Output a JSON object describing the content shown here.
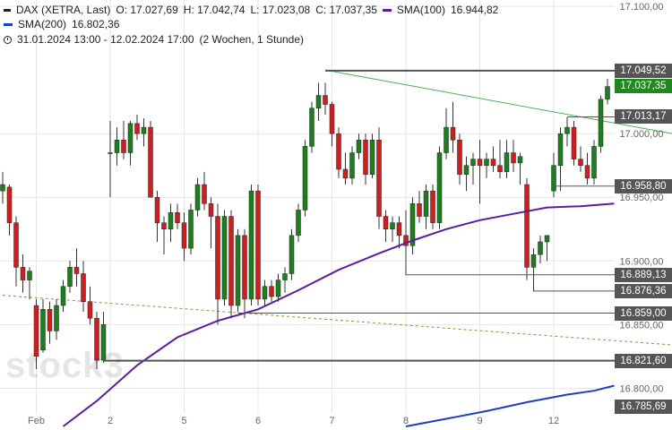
{
  "legend": {
    "instrument": "DAX (XETRA, Last)",
    "open": "O: 17.027,69",
    "high": "H: 17.042,74",
    "low": "L: 17.023,08",
    "close": "C: 17.037,35",
    "sma100_name": "SMA(100)",
    "sma100_value": "16.944,82",
    "sma200_name": "SMA(200)",
    "sma200_value": "16.802,36",
    "period": "31.01.2024 13:00 - 12.02.2024 17:00",
    "period_note": "(2 Wochen, 1 Stunde)"
  },
  "watermark": "stock3",
  "colors": {
    "bull": "#1e7d1e",
    "bear": "#cc1f1f",
    "sma100": "#5a1d9e",
    "sma200": "#1d3fbf",
    "trend": "#4caf50",
    "dashed": "#9a8a3a",
    "level": "#555555",
    "tag_dark": "#555555",
    "tag_current": "#1e8a1e"
  },
  "chart_data": {
    "type": "candlestick",
    "y_range": [
      16770,
      17105
    ],
    "y_ticks": [
      {
        "value": 17100,
        "label": "17.100,00"
      },
      {
        "value": 17000,
        "label": "17.000,00"
      },
      {
        "value": 16950,
        "label": "16.950,00"
      },
      {
        "value": 16900,
        "label": "16.900,00"
      },
      {
        "value": 16850,
        "label": "16.850,00"
      },
      {
        "value": 16800,
        "label": "16.800,00"
      }
    ],
    "x_labels": [
      {
        "index": 5,
        "label": "Feb"
      },
      {
        "index": 16,
        "label": "2"
      },
      {
        "index": 27,
        "label": "5"
      },
      {
        "index": 38,
        "label": "6"
      },
      {
        "index": 49,
        "label": "7"
      },
      {
        "index": 60,
        "label": "8"
      },
      {
        "index": 71,
        "label": "9"
      },
      {
        "index": 82,
        "label": "12"
      }
    ],
    "x_count": 92,
    "candles": [
      {
        "o": 16955,
        "h": 16970,
        "l": 16945,
        "c": 16960
      },
      {
        "o": 16958,
        "h": 16960,
        "l": 16920,
        "c": 16930
      },
      {
        "o": 16930,
        "h": 16935,
        "l": 16880,
        "c": 16895
      },
      {
        "o": 16895,
        "h": 16905,
        "l": 16875,
        "c": 16885
      },
      {
        "o": 16885,
        "h": 16895,
        "l": 16870,
        "c": 16892
      },
      {
        "o": 16865,
        "h": 16870,
        "l": 16815,
        "c": 16825
      },
      {
        "o": 16830,
        "h": 16870,
        "l": 16828,
        "c": 16862
      },
      {
        "o": 16862,
        "h": 16868,
        "l": 16835,
        "c": 16845
      },
      {
        "o": 16845,
        "h": 16870,
        "l": 16838,
        "c": 16865
      },
      {
        "o": 16865,
        "h": 16885,
        "l": 16860,
        "c": 16880
      },
      {
        "o": 16880,
        "h": 16900,
        "l": 16875,
        "c": 16895
      },
      {
        "o": 16895,
        "h": 16910,
        "l": 16880,
        "c": 16890
      },
      {
        "o": 16890,
        "h": 16900,
        "l": 16860,
        "c": 16868
      },
      {
        "o": 16868,
        "h": 16880,
        "l": 16850,
        "c": 16855
      },
      {
        "o": 16855,
        "h": 16860,
        "l": 16815,
        "c": 16822
      },
      {
        "o": 16822,
        "h": 16860,
        "l": 16820,
        "c": 16850
      },
      {
        "o": 16985,
        "h": 17010,
        "l": 16950,
        "c": 16985
      },
      {
        "o": 16985,
        "h": 17005,
        "l": 16975,
        "c": 16995
      },
      {
        "o": 16995,
        "h": 17010,
        "l": 16980,
        "c": 16985
      },
      {
        "o": 16985,
        "h": 17010,
        "l": 16975,
        "c": 17008
      },
      {
        "o": 17008,
        "h": 17015,
        "l": 16995,
        "c": 17000
      },
      {
        "o": 17000,
        "h": 17012,
        "l": 16990,
        "c": 17005
      },
      {
        "o": 17005,
        "h": 17010,
        "l": 16950,
        "c": 16950
      },
      {
        "o": 16950,
        "h": 16955,
        "l": 16915,
        "c": 16930
      },
      {
        "o": 16930,
        "h": 16935,
        "l": 16905,
        "c": 16925
      },
      {
        "o": 16925,
        "h": 16945,
        "l": 16915,
        "c": 16938
      },
      {
        "o": 16938,
        "h": 16945,
        "l": 16925,
        "c": 16930
      },
      {
        "o": 16930,
        "h": 16938,
        "l": 16900,
        "c": 16910
      },
      {
        "o": 16910,
        "h": 16945,
        "l": 16905,
        "c": 16940
      },
      {
        "o": 16940,
        "h": 16965,
        "l": 16935,
        "c": 16960
      },
      {
        "o": 16960,
        "h": 16970,
        "l": 16940,
        "c": 16945
      },
      {
        "o": 16945,
        "h": 16950,
        "l": 16910,
        "c": 16935
      },
      {
        "o": 16935,
        "h": 16945,
        "l": 16850,
        "c": 16870
      },
      {
        "o": 16870,
        "h": 16940,
        "l": 16865,
        "c": 16935
      },
      {
        "o": 16935,
        "h": 16940,
        "l": 16855,
        "c": 16865
      },
      {
        "o": 16865,
        "h": 16925,
        "l": 16860,
        "c": 16920
      },
      {
        "o": 16920,
        "h": 16925,
        "l": 16855,
        "c": 16870
      },
      {
        "o": 16870,
        "h": 16960,
        "l": 16865,
        "c": 16955
      },
      {
        "o": 16955,
        "h": 16960,
        "l": 16865,
        "c": 16870
      },
      {
        "o": 16870,
        "h": 16885,
        "l": 16865,
        "c": 16880
      },
      {
        "o": 16880,
        "h": 16885,
        "l": 16868,
        "c": 16872
      },
      {
        "o": 16872,
        "h": 16890,
        "l": 16868,
        "c": 16885
      },
      {
        "o": 16885,
        "h": 16895,
        "l": 16875,
        "c": 16890
      },
      {
        "o": 16890,
        "h": 16925,
        "l": 16885,
        "c": 16920
      },
      {
        "o": 16920,
        "h": 16945,
        "l": 16915,
        "c": 16940
      },
      {
        "o": 16940,
        "h": 16995,
        "l": 16935,
        "c": 16990
      },
      {
        "o": 16990,
        "h": 17025,
        "l": 16985,
        "c": 17020
      },
      {
        "o": 17020,
        "h": 17040,
        "l": 17010,
        "c": 17030
      },
      {
        "o": 17030,
        "h": 17040,
        "l": 17015,
        "c": 17023
      },
      {
        "o": 17023,
        "h": 17025,
        "l": 16990,
        "c": 17000
      },
      {
        "o": 17000,
        "h": 17005,
        "l": 16965,
        "c": 16972
      },
      {
        "o": 16972,
        "h": 16985,
        "l": 16960,
        "c": 16965
      },
      {
        "o": 16965,
        "h": 16990,
        "l": 16960,
        "c": 16985
      },
      {
        "o": 16985,
        "h": 17000,
        "l": 16980,
        "c": 16995
      },
      {
        "o": 16995,
        "h": 17000,
        "l": 16960,
        "c": 16968
      },
      {
        "o": 16968,
        "h": 17000,
        "l": 16965,
        "c": 16995
      },
      {
        "o": 16995,
        "h": 17005,
        "l": 16925,
        "c": 16935
      },
      {
        "o": 16935,
        "h": 16940,
        "l": 16915,
        "c": 16925
      },
      {
        "o": 16925,
        "h": 16935,
        "l": 16915,
        "c": 16930
      },
      {
        "o": 16930,
        "h": 16935,
        "l": 16910,
        "c": 16920
      },
      {
        "o": 16920,
        "h": 16940,
        "l": 16889,
        "c": 16912
      },
      {
        "o": 16912,
        "h": 16950,
        "l": 16905,
        "c": 16945
      },
      {
        "o": 16945,
        "h": 16955,
        "l": 16930,
        "c": 16935
      },
      {
        "o": 16935,
        "h": 16960,
        "l": 16925,
        "c": 16955
      },
      {
        "o": 16955,
        "h": 16960,
        "l": 16925,
        "c": 16930
      },
      {
        "o": 16930,
        "h": 16990,
        "l": 16925,
        "c": 16985
      },
      {
        "o": 16985,
        "h": 17020,
        "l": 16980,
        "c": 17005
      },
      {
        "o": 17005,
        "h": 17025,
        "l": 16985,
        "c": 16995
      },
      {
        "o": 16995,
        "h": 17000,
        "l": 16960,
        "c": 16968
      },
      {
        "o": 16968,
        "h": 16982,
        "l": 16955,
        "c": 16975
      },
      {
        "o": 16975,
        "h": 16985,
        "l": 16960,
        "c": 16980
      },
      {
        "o": 16980,
        "h": 16995,
        "l": 16945,
        "c": 16975
      },
      {
        "o": 16975,
        "h": 16985,
        "l": 16965,
        "c": 16980
      },
      {
        "o": 16980,
        "h": 16990,
        "l": 16970,
        "c": 16975
      },
      {
        "o": 16975,
        "h": 16995,
        "l": 16965,
        "c": 16970
      },
      {
        "o": 16970,
        "h": 16995,
        "l": 16965,
        "c": 16985
      },
      {
        "o": 16985,
        "h": 16995,
        "l": 16970,
        "c": 16977
      },
      {
        "o": 16977,
        "h": 16985,
        "l": 16960,
        "c": 16982
      },
      {
        "o": 16960,
        "h": 16965,
        "l": 16885,
        "c": 16895
      },
      {
        "o": 16895,
        "h": 16910,
        "l": 16876,
        "c": 16905
      },
      {
        "o": 16905,
        "h": 16920,
        "l": 16898,
        "c": 16915
      },
      {
        "o": 16915,
        "h": 16920,
        "l": 16900,
        "c": 16920
      },
      {
        "o": 16955,
        "h": 16985,
        "l": 16950,
        "c": 16975
      },
      {
        "o": 16975,
        "h": 17005,
        "l": 16955,
        "c": 17000
      },
      {
        "o": 17000,
        "h": 17013,
        "l": 16990,
        "c": 17005
      },
      {
        "o": 17005,
        "h": 17010,
        "l": 16975,
        "c": 16980
      },
      {
        "o": 16980,
        "h": 16990,
        "l": 16970,
        "c": 16975
      },
      {
        "o": 16975,
        "h": 16985,
        "l": 16960,
        "c": 16965
      },
      {
        "o": 16965,
        "h": 16995,
        "l": 16960,
        "c": 16990
      },
      {
        "o": 16990,
        "h": 17030,
        "l": 16985,
        "c": 17027
      },
      {
        "o": 17027,
        "h": 17043,
        "l": 17023,
        "c": 17037
      }
    ],
    "sma100": [
      {
        "i": 9,
        "v": 16770
      },
      {
        "i": 14,
        "v": 16790
      },
      {
        "i": 20,
        "v": 16818
      },
      {
        "i": 26,
        "v": 16840
      },
      {
        "i": 32,
        "v": 16853
      },
      {
        "i": 38,
        "v": 16862
      },
      {
        "i": 44,
        "v": 16877
      },
      {
        "i": 50,
        "v": 16893
      },
      {
        "i": 56,
        "v": 16906
      },
      {
        "i": 61,
        "v": 16916
      },
      {
        "i": 66,
        "v": 16925
      },
      {
        "i": 71,
        "v": 16932
      },
      {
        "i": 76,
        "v": 16937
      },
      {
        "i": 81,
        "v": 16942
      },
      {
        "i": 86,
        "v": 16943
      },
      {
        "i": 91,
        "v": 16945
      }
    ],
    "sma200": [
      {
        "i": 60,
        "v": 16770
      },
      {
        "i": 66,
        "v": 16776
      },
      {
        "i": 72,
        "v": 16782
      },
      {
        "i": 78,
        "v": 16789
      },
      {
        "i": 84,
        "v": 16795
      },
      {
        "i": 88,
        "v": 16798
      },
      {
        "i": 91,
        "v": 16802
      }
    ],
    "trend_line": {
      "from": {
        "i": 48,
        "v": 17050
      },
      "to": {
        "i": 110,
        "v": 16990
      }
    },
    "dashed_line": {
      "from": {
        "i": 0,
        "v": 16873
      },
      "to": {
        "i": 110,
        "v": 16830
      }
    },
    "levels": [
      {
        "value": 17049.52,
        "label": "17.049,52",
        "from": 48
      },
      {
        "value": 17013.17,
        "label": "17.013,17",
        "from": 84
      },
      {
        "value": 16958.8,
        "label": "16.958,80",
        "from": 82
      },
      {
        "value": 16889.13,
        "label": "16.889,13",
        "from": 60
      },
      {
        "value": 16876.36,
        "label": "16.876,36",
        "from": 79
      },
      {
        "value": 16859.0,
        "label": "16.859,00",
        "from": 35
      },
      {
        "value": 16821.6,
        "label": "16.821,60",
        "from": 15
      },
      {
        "value": 16785.69,
        "label": "16.785,69",
        "from": null
      }
    ],
    "current": {
      "value": 17037.35,
      "label": "17.037,35"
    }
  }
}
